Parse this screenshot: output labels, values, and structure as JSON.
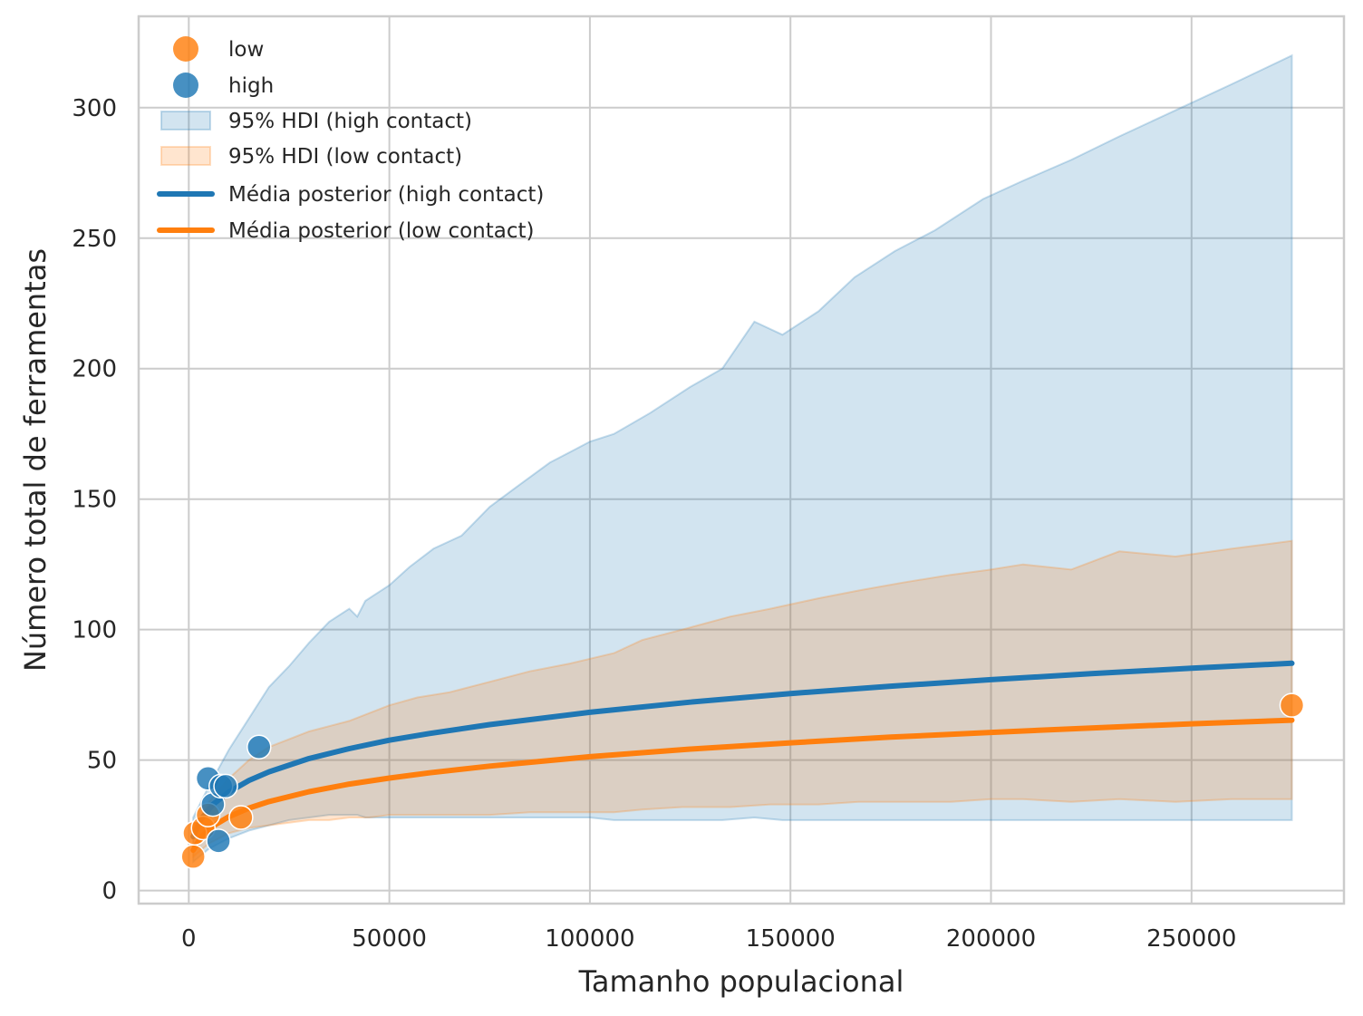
{
  "chart_data": {
    "type": "line",
    "xlabel": "Tamanho populacional",
    "ylabel": "Número total de ferramentas",
    "xlim": [
      -12500,
      288000
    ],
    "ylim": [
      -5,
      335
    ],
    "xticks": [
      0,
      50000,
      100000,
      150000,
      200000,
      250000
    ],
    "xtick_labels": [
      "0",
      "50000",
      "100000",
      "150000",
      "200000",
      "250000"
    ],
    "yticks": [
      0,
      50,
      100,
      150,
      200,
      250,
      300
    ],
    "ytick_labels": [
      "0",
      "50",
      "100",
      "150",
      "200",
      "250",
      "300"
    ],
    "grid": true,
    "legend_placement": "top-left",
    "colors": {
      "high": "#1f77b4",
      "low": "#ff7f0e"
    },
    "bands": [
      {
        "name": "95% HDI (high contact)",
        "color": "#1f77b4",
        "x": [
          1100,
          5000,
          10000,
          15000,
          20000,
          25000,
          30000,
          35000,
          40000,
          42000,
          44000,
          46000,
          50000,
          55000,
          61000,
          68000,
          75000,
          82000,
          90000,
          100000,
          106000,
          115000,
          125000,
          133000,
          141000,
          148000,
          157000,
          166000,
          176000,
          186000,
          198000,
          208000,
          220000,
          232000,
          246000,
          260000,
          275000
        ],
        "upper": [
          28,
          40,
          54,
          66,
          78,
          86,
          95,
          103,
          108,
          105,
          111,
          113,
          117,
          124,
          131,
          136,
          147,
          155,
          164,
          172,
          175,
          183,
          193,
          200,
          218,
          213,
          222,
          235,
          245,
          253,
          265,
          272,
          280,
          289,
          299,
          309,
          320
        ],
        "lower": [
          11,
          16,
          20,
          23,
          25,
          27,
          28,
          29,
          29,
          29,
          28,
          28,
          28,
          28,
          28,
          28,
          28,
          28,
          28,
          28,
          27,
          27,
          27,
          27,
          28,
          27,
          27,
          27,
          27,
          27,
          27,
          27,
          27,
          27,
          27,
          27,
          27
        ]
      },
      {
        "name": "95% HDI (low contact)",
        "color": "#ff7f0e",
        "x": [
          1100,
          5000,
          10000,
          15000,
          20000,
          25000,
          30000,
          35000,
          40000,
          45000,
          50000,
          57000,
          65000,
          75000,
          85000,
          95000,
          106000,
          113000,
          123000,
          135000,
          145000,
          157000,
          167000,
          178000,
          190000,
          200000,
          208000,
          220000,
          232000,
          246000,
          260000,
          275000
        ],
        "upper": [
          22,
          34,
          43,
          50,
          55,
          58,
          61,
          63,
          65,
          68,
          71,
          74,
          76,
          80,
          84,
          87,
          91,
          96,
          100,
          105,
          108,
          112,
          115,
          118,
          121,
          123,
          125,
          123,
          130,
          128,
          131,
          134
        ],
        "lower": [
          13,
          18,
          22,
          24,
          25,
          26,
          27,
          27,
          28,
          28,
          29,
          29,
          29,
          29,
          30,
          30,
          30,
          31,
          32,
          32,
          33,
          33,
          34,
          34,
          34,
          35,
          35,
          34,
          35,
          34,
          35,
          35
        ]
      }
    ],
    "series": [
      {
        "name": "Média posterior (high contact)",
        "color": "#1f77b4",
        "x": [
          1100,
          3000,
          6000,
          10000,
          15000,
          20000,
          30000,
          40000,
          50000,
          60000,
          75000,
          100000,
          125000,
          150000,
          175000,
          200000,
          225000,
          250000,
          275000
        ],
        "y": [
          20.7,
          27.2,
          33.0,
          37.8,
          42.2,
          45.5,
          50.6,
          54.4,
          57.6,
          60.2,
          63.6,
          68.3,
          72.2,
          75.5,
          78.3,
          80.8,
          83.1,
          85.2,
          87.1
        ]
      },
      {
        "name": "Média posterior (low contact)",
        "color": "#ff7f0e",
        "x": [
          1100,
          3000,
          6000,
          10000,
          15000,
          20000,
          30000,
          40000,
          50000,
          60000,
          75000,
          100000,
          125000,
          150000,
          175000,
          200000,
          225000,
          250000,
          275000
        ],
        "y": [
          15.5,
          20.4,
          24.7,
          28.3,
          31.6,
          34.1,
          37.9,
          40.8,
          43.1,
          45.1,
          47.7,
          51.3,
          54.2,
          56.6,
          58.8,
          60.6,
          62.3,
          63.9,
          65.3
        ]
      }
    ],
    "points": [
      {
        "name": "low",
        "color": "#ff7f0e",
        "x": [
          1100,
          1500,
          3600,
          4791,
          13000,
          275000
        ],
        "y": [
          13,
          22,
          24,
          29,
          28,
          71
        ]
      },
      {
        "name": "high",
        "color": "#1f77b4",
        "x": [
          4791,
          6000,
          7400,
          8000,
          9200,
          17500
        ],
        "y": [
          43,
          33,
          19,
          40,
          40,
          55
        ]
      }
    ],
    "legend": [
      {
        "kind": "point",
        "label": "low",
        "color": "#ff7f0e"
      },
      {
        "kind": "point",
        "label": "high",
        "color": "#1f77b4"
      },
      {
        "kind": "band",
        "label": "95% HDI (high contact)",
        "color": "#1f77b4"
      },
      {
        "kind": "band",
        "label": "95% HDI (low contact)",
        "color": "#ff7f0e"
      },
      {
        "kind": "line",
        "label": "Média posterior (high contact)",
        "color": "#1f77b4"
      },
      {
        "kind": "line",
        "label": "Média posterior (low contact)",
        "color": "#ff7f0e"
      }
    ]
  }
}
